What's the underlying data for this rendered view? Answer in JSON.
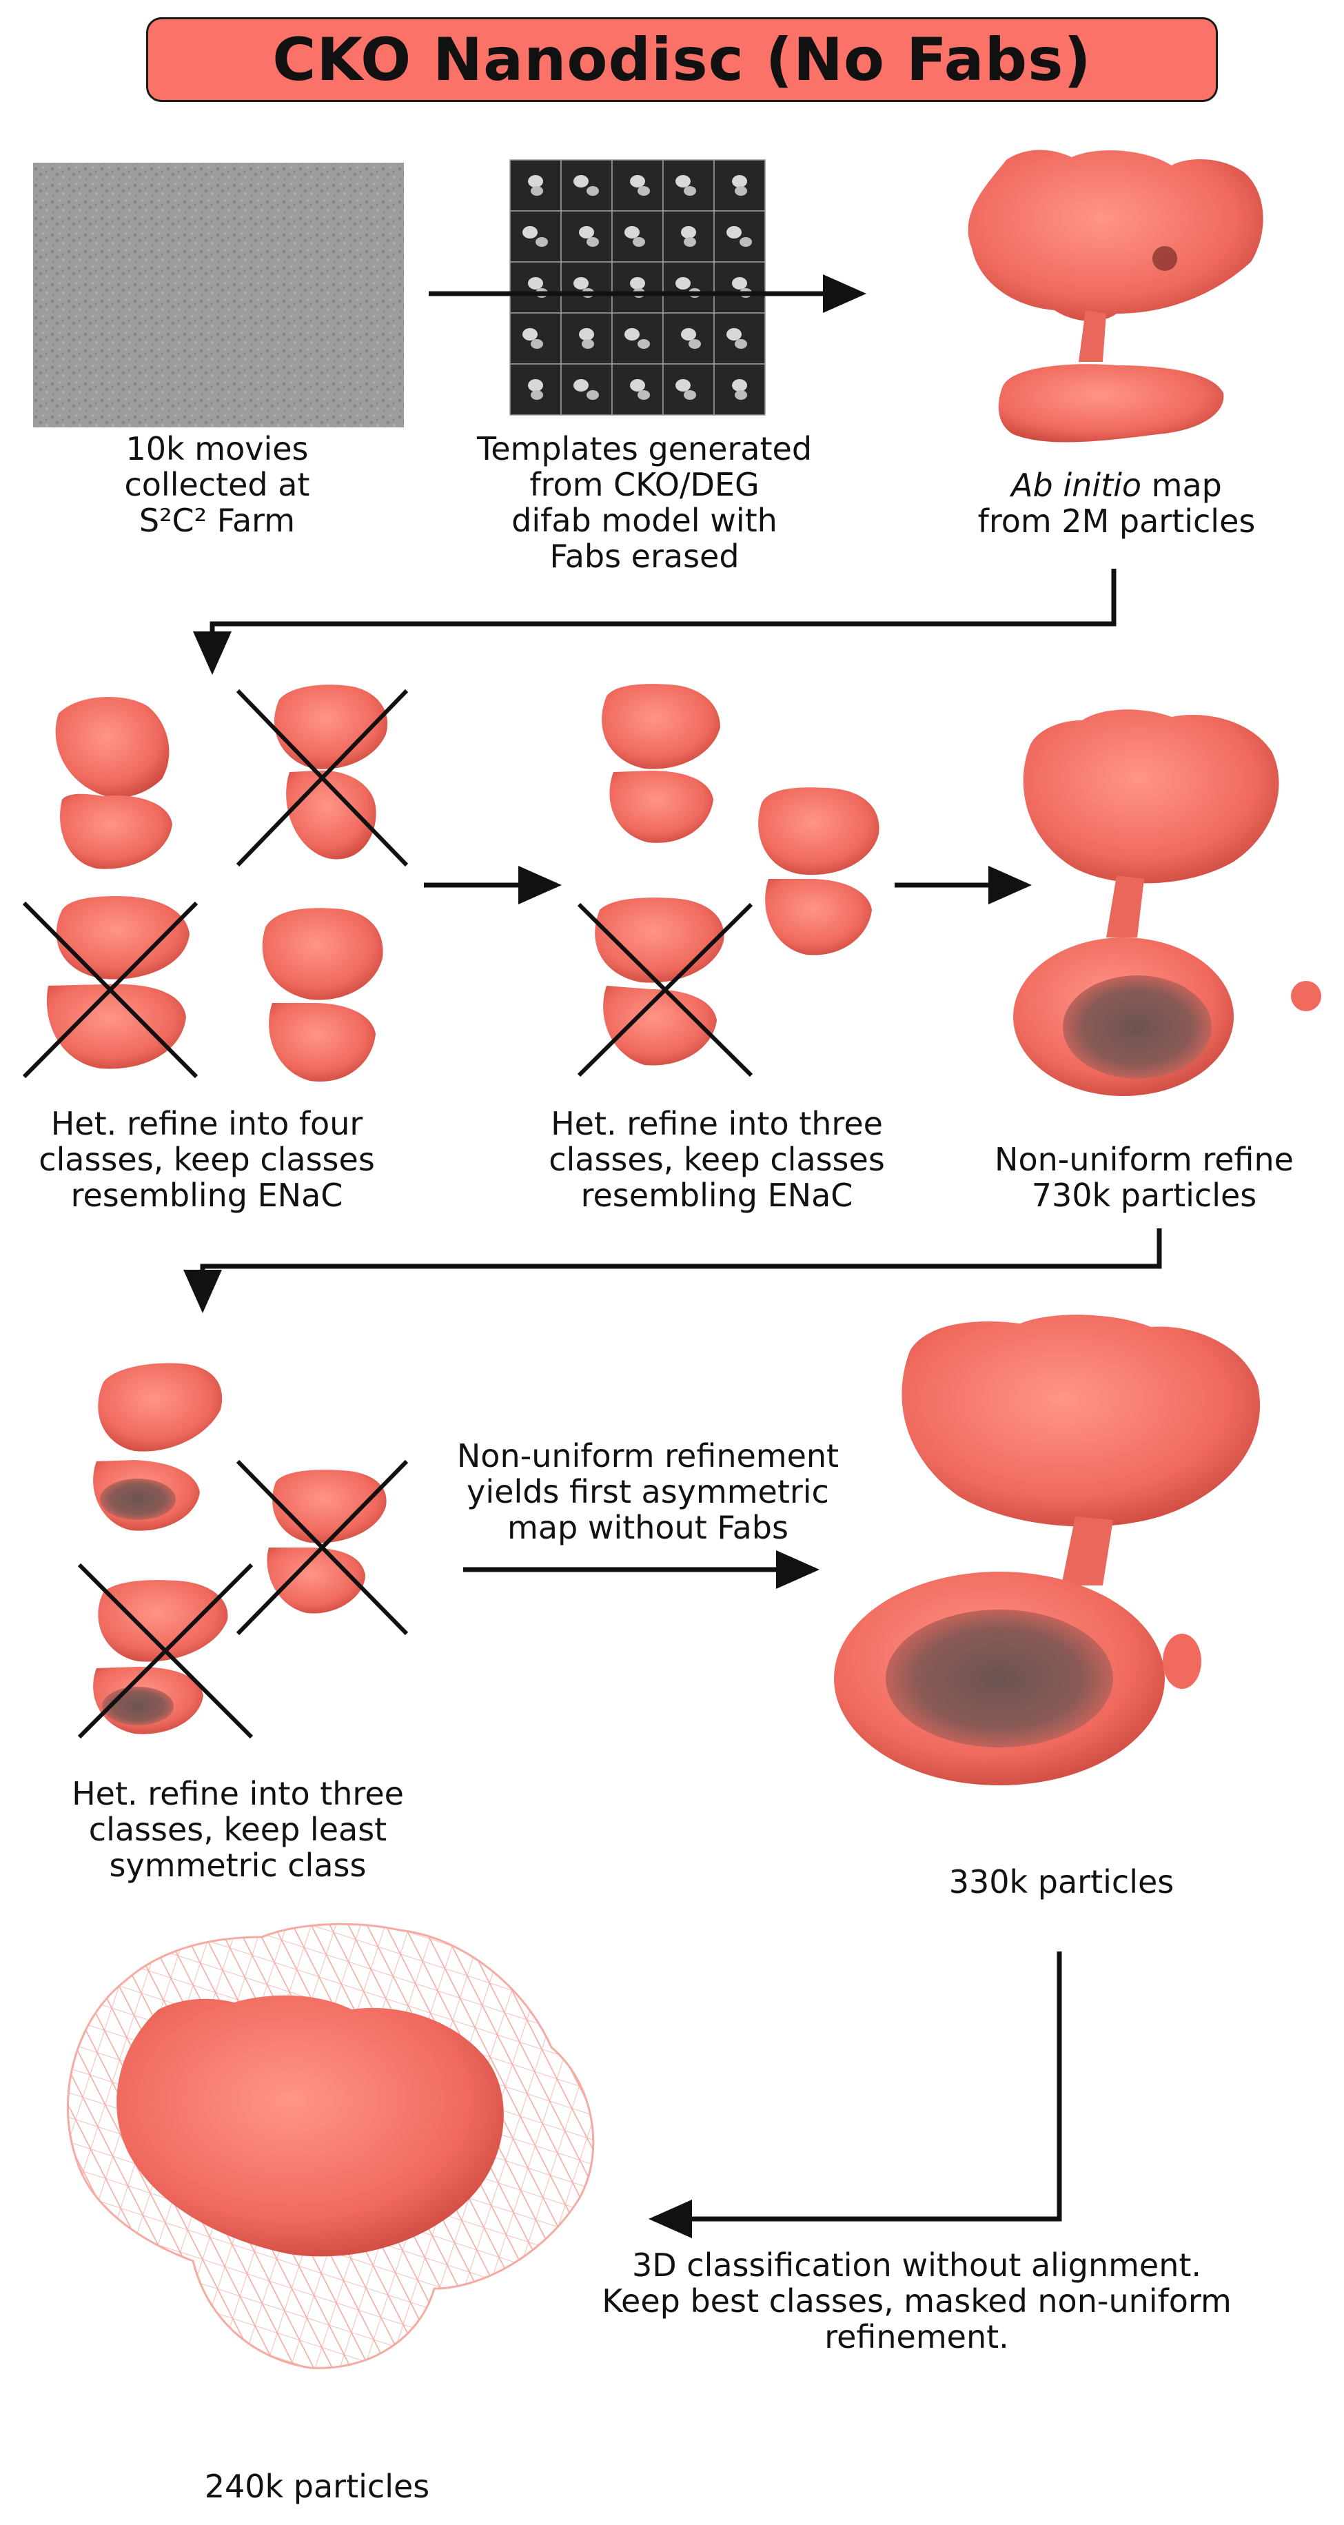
{
  "title": "CKO Nanodisc (No Fabs)",
  "colors": {
    "title_fill": "#fa7268",
    "density": "#f26a5e",
    "density_dark": "#c9483e",
    "density_light": "#ff9a8e",
    "mesh": "#f7a49c",
    "arrow": "#111111"
  },
  "steps": {
    "movies": {
      "lines": [
        "10k movies",
        "collected at",
        "S²C² Farm"
      ]
    },
    "templates": {
      "lines": [
        "Templates generated",
        "from CKO/DEG",
        "difab model with",
        "Fabs erased"
      ]
    },
    "ab_initio": {
      "italic": "Ab initio",
      "rest": " map",
      "line2": "from 2M particles"
    },
    "het_four": {
      "lines": [
        "Het. refine into four",
        "classes, keep classes",
        "resembling ENaC"
      ]
    },
    "het_three": {
      "lines": [
        "Het. refine into three",
        "classes, keep classes",
        "resembling ENaC"
      ]
    },
    "nu_refine": {
      "lines": [
        "Non-uniform refine",
        "730k particles"
      ]
    },
    "het_three_sym": {
      "lines": [
        "Het. refine into three",
        "classes, keep least",
        "symmetric class"
      ]
    },
    "nu_asym": {
      "lines": [
        "Non-uniform refinement",
        "yields first asymmetric",
        "map without Fabs"
      ]
    },
    "particles_330k": {
      "lines": [
        "330k particles"
      ]
    },
    "classification": {
      "lines": [
        "3D classification without alignment.",
        "Keep best classes, masked non-uniform",
        "refinement."
      ]
    },
    "particles_240k": {
      "lines": [
        "240k particles"
      ]
    }
  }
}
